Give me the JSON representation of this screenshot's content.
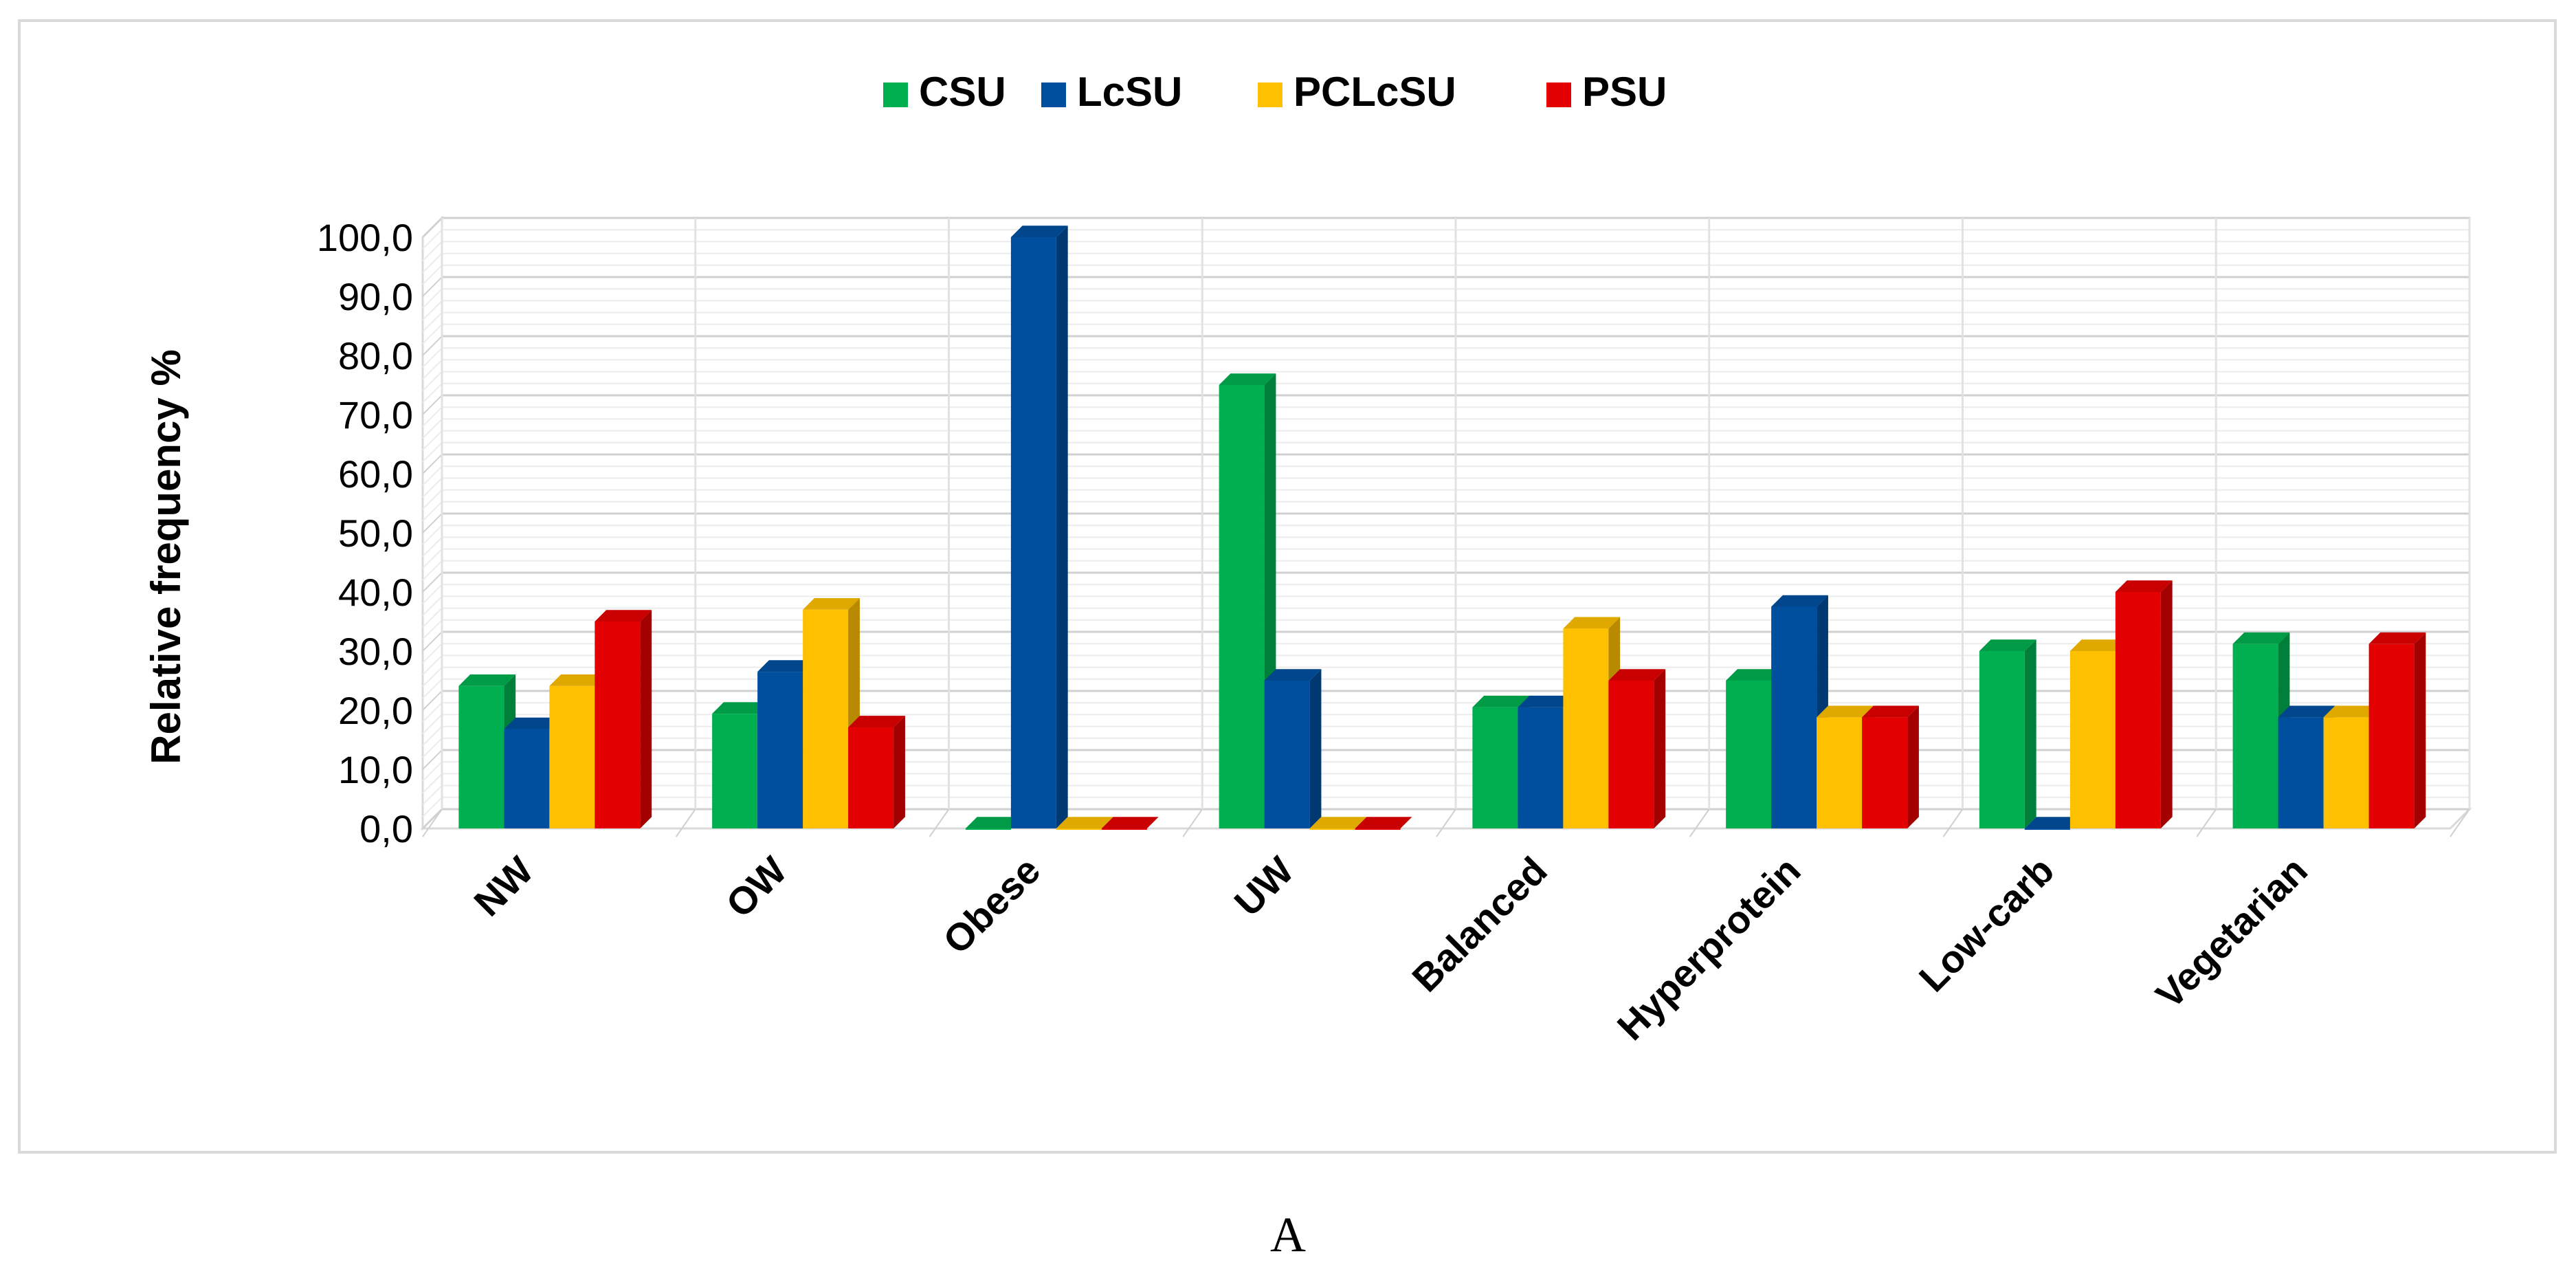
{
  "chart_data": {
    "type": "bar",
    "style": "3d-clustered-column",
    "title": "",
    "xlabel": "",
    "ylabel": "Relative frequency %",
    "ylim": [
      0,
      100
    ],
    "y_ticks": [
      "0,0",
      "10,0",
      "20,0",
      "30,0",
      "40,0",
      "50,0",
      "60,0",
      "70,0",
      "80,0",
      "90,0",
      "100,0"
    ],
    "categories": [
      "NW",
      "OW",
      "Obese",
      "UW",
      "Balanced",
      "Hyperprotein",
      "Low-carb",
      "Vegetarian"
    ],
    "series": [
      {
        "name": "CSU",
        "color": "#00b050",
        "values": [
          24.1,
          19.4,
          0.0,
          75.0,
          20.5,
          25.0,
          30.0,
          31.2
        ]
      },
      {
        "name": "LcSU",
        "color": "#004f9f",
        "values": [
          16.8,
          26.5,
          100.0,
          25.0,
          20.5,
          37.5,
          0.0,
          18.8
        ]
      },
      {
        "name": "PCLcSU",
        "color": "#ffc000",
        "values": [
          24.1,
          37.0,
          0.0,
          0.0,
          33.8,
          18.8,
          30.0,
          18.8
        ]
      },
      {
        "name": "PSU",
        "color": "#e30000",
        "values": [
          35.0,
          17.1,
          0.0,
          0.0,
          25.0,
          18.8,
          40.0,
          31.2
        ]
      }
    ],
    "grid": true,
    "legend_position": "top-center",
    "caption": "A"
  }
}
